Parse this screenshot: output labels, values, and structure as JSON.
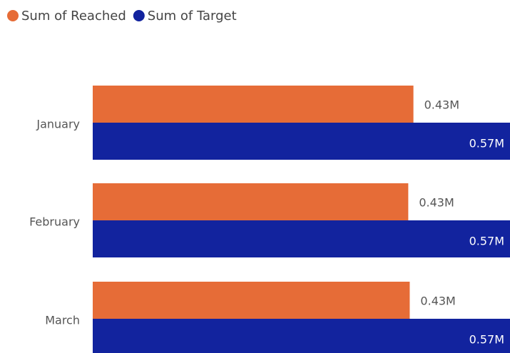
{
  "chart_data": {
    "type": "hbar",
    "categories": [
      "January",
      "February",
      "March"
    ],
    "series": [
      {
        "name": "Sum of Reached",
        "color": "#e66c37",
        "values": [
          0.435,
          0.428,
          0.43
        ],
        "value_labels": [
          "0.43M",
          "0.43M",
          "0.43M"
        ]
      },
      {
        "name": "Sum of Target",
        "color": "#12239e",
        "values": [
          0.566,
          0.566,
          0.566
        ],
        "value_labels": [
          "0.57M",
          "0.57M",
          "0.57M"
        ]
      }
    ],
    "xlim": [
      0,
      0.566
    ],
    "legend": "top-left"
  }
}
